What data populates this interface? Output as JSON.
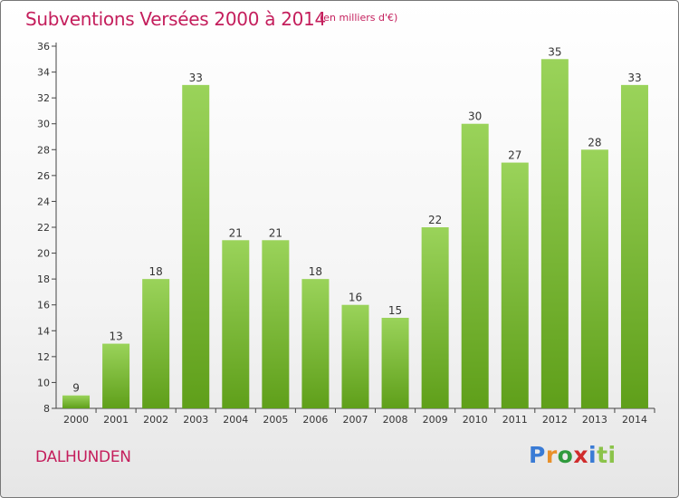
{
  "title": "Subventions Versées 2000 à 2014",
  "subtitle": "(en milliers d'€)",
  "commune": "DALHUNDEN",
  "logo": {
    "text": "Proxiti",
    "letters": [
      "P",
      "r",
      "o",
      "x",
      "i",
      "ti"
    ]
  },
  "colors": {
    "title": "#c41e5c",
    "bar_top": "#9ad35a",
    "bar_bottom": "#5f9f1a"
  },
  "chart_data": {
    "type": "bar",
    "categories": [
      "2000",
      "2001",
      "2002",
      "2003",
      "2004",
      "2005",
      "2006",
      "2007",
      "2008",
      "2009",
      "2010",
      "2011",
      "2012",
      "2013",
      "2014"
    ],
    "values": [
      9,
      13,
      18,
      33,
      21,
      21,
      18,
      16,
      15,
      22,
      30,
      27,
      35,
      28,
      33
    ],
    "ylim": [
      8,
      36
    ],
    "yticks": [
      8,
      10,
      12,
      14,
      16,
      18,
      20,
      22,
      24,
      26,
      28,
      30,
      32,
      34,
      36
    ],
    "grid": false,
    "data_labels": true
  }
}
